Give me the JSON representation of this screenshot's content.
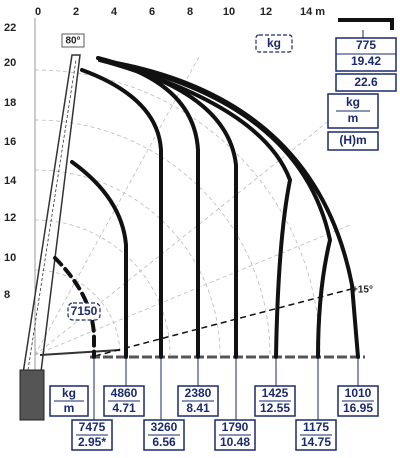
{
  "axis_top": [
    "0",
    "2",
    "4",
    "6",
    "8",
    "10",
    "12",
    "14 m"
  ],
  "axis_left": [
    "22",
    "20",
    "18",
    "16",
    "14",
    "12",
    "10",
    "8"
  ],
  "angle_max": "80°",
  "unit_badge": "kg",
  "legend": {
    "load": "775",
    "radius": "19.42",
    "height": "22.6",
    "unit_kg": "kg",
    "unit_m": "m",
    "unit_h": "(H)m"
  },
  "dashed_load": "7150",
  "angle_min": "+15°",
  "bottom_legend": {
    "kg": "kg",
    "m": "m"
  },
  "points": [
    {
      "load": "7475",
      "radius": "2.95*"
    },
    {
      "load": "4860",
      "radius": "4.71"
    },
    {
      "load": "3260",
      "radius": "6.56"
    },
    {
      "load": "2380",
      "radius": "8.41"
    },
    {
      "load": "1790",
      "radius": "10.48"
    },
    {
      "load": "1425",
      "radius": "12.55"
    },
    {
      "load": "1175",
      "radius": "14.75"
    },
    {
      "load": "1010",
      "radius": "16.95"
    }
  ]
}
